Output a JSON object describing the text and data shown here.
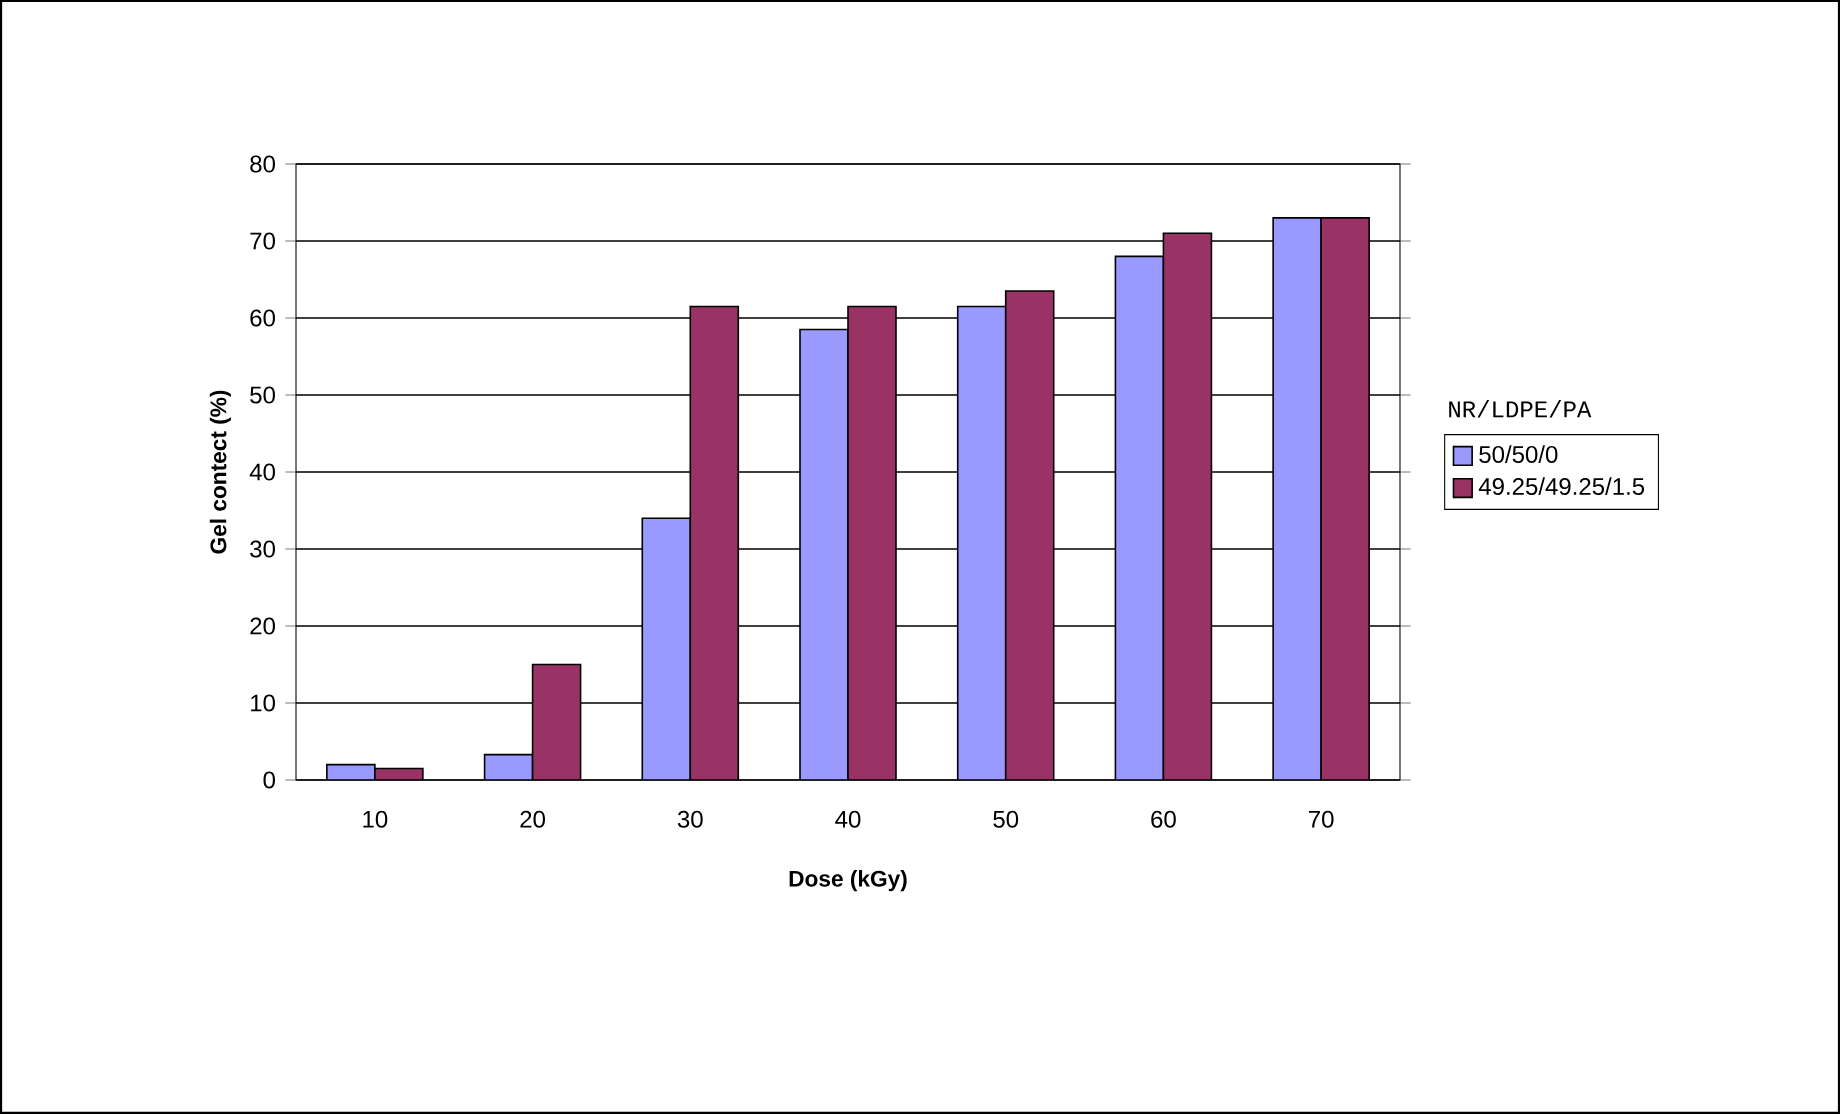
{
  "chart_data": {
    "type": "bar",
    "xlabel": "Dose (kGy)",
    "ylabel": "Gel contect (%)",
    "legend_title": "NR/LDPE/PA",
    "categories": [
      "10",
      "20",
      "30",
      "40",
      "50",
      "60",
      "70"
    ],
    "series": [
      {
        "name": "50/50/0",
        "color": "#9999ff",
        "values": [
          2,
          3.3,
          34,
          58.5,
          61.5,
          68,
          73
        ]
      },
      {
        "name": "49.25/49.25/1.5",
        "color": "#993366",
        "values": [
          1.5,
          15,
          61.5,
          61.5,
          63.5,
          71,
          73
        ]
      }
    ],
    "ylim": [
      0,
      80
    ],
    "yticks": [
      0,
      10,
      20,
      30,
      40,
      50,
      60,
      70,
      80
    ],
    "grid": "y",
    "legend": "right"
  }
}
